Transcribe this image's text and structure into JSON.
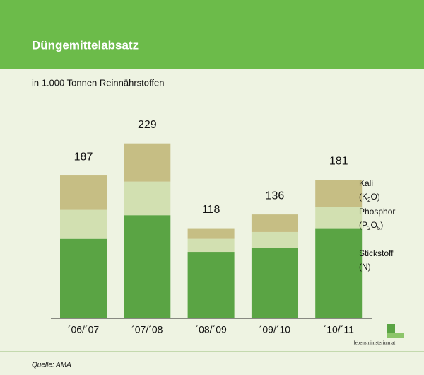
{
  "chart_data": {
    "type": "bar",
    "stacked": true,
    "title": "Düngemittelabsatz",
    "subtitle": "in 1.000 Tonnen Reinnährstoffen",
    "source": "Quelle: AMA",
    "logo": "lebensministerium.at",
    "categories": [
      "´06/´07",
      "´07/´08",
      "´08/´09",
      "´09/´10",
      "´10/´11"
    ],
    "totals": [
      187,
      229,
      118,
      136,
      181
    ],
    "series": [
      {
        "name": "Stickstoff (N)",
        "color": "#5aa444",
        "values": [
          104,
          135,
          87,
          92,
          118
        ]
      },
      {
        "name": "Phosphor (P₂O₅)",
        "color": "#d2e0b1",
        "values": [
          38,
          44,
          17,
          21,
          28
        ]
      },
      {
        "name": "Kali (K₂O)",
        "color": "#c6be84",
        "values": [
          45,
          50,
          14,
          23,
          35
        ]
      }
    ]
  }
}
